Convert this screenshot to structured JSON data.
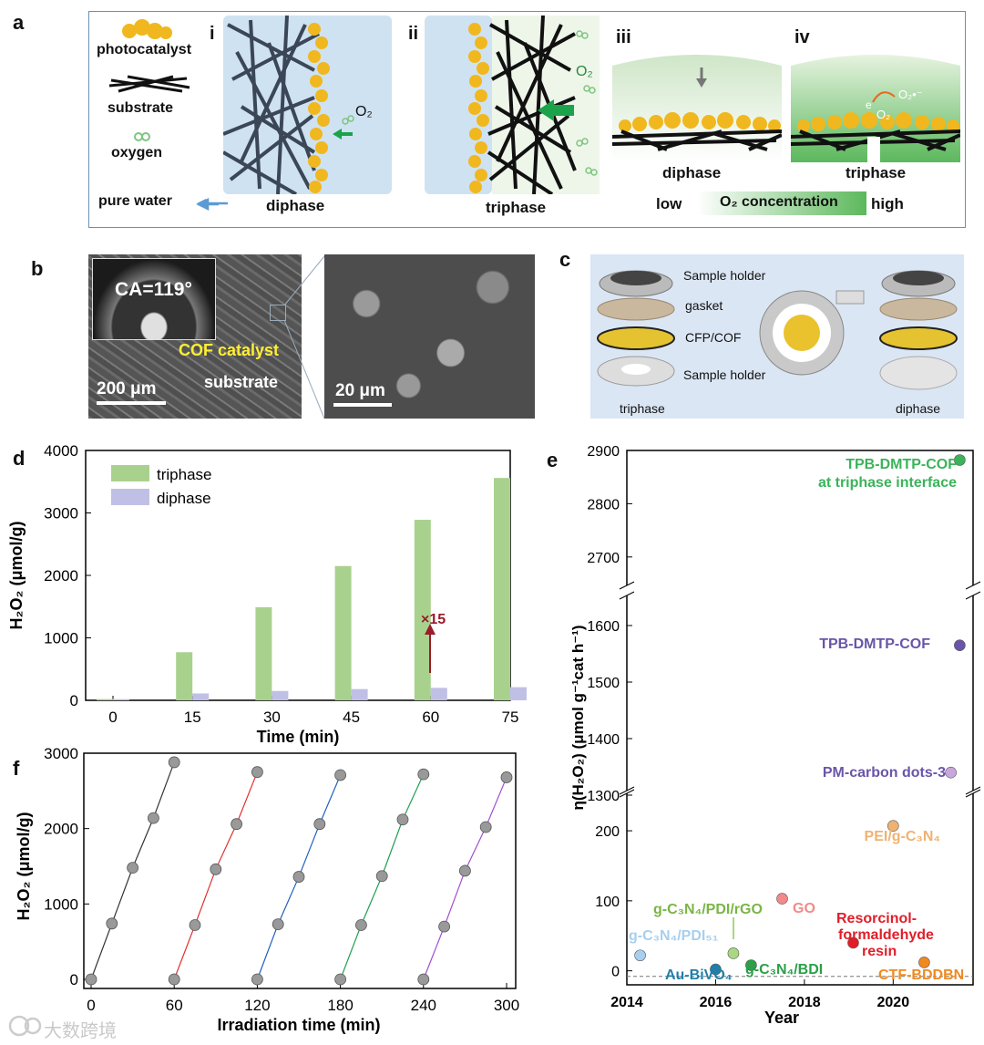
{
  "panel_letters": {
    "a": "a",
    "b": "b",
    "c": "c",
    "d": "d",
    "e": "e",
    "f": "f"
  },
  "panel_a": {
    "legend": {
      "photocatalyst": "photocatalyst",
      "substrate": "substrate",
      "oxygen": "oxygen",
      "pure_water": "pure water"
    },
    "subpanels": {
      "i": "i",
      "ii": "ii",
      "iii": "iii",
      "iv": "iv"
    },
    "labels": {
      "diphase_i": "diphase",
      "triphase_ii": "triphase",
      "diphase_iii": "diphase",
      "triphase_iv": "triphase"
    },
    "o2": "O₂",
    "o2_ii": "O₂",
    "e": "e",
    "o2_radical": "O₂•⁻",
    "o2_small": "O₂",
    "scale": {
      "low": "low",
      "concentration": "O₂ concentration",
      "high": "high"
    },
    "colors": {
      "photocatalyst": "#f0b81e",
      "water": "#cfe2f2",
      "oxygen_gradient": "#5cb85c",
      "arrow_green": "#1aa34a",
      "arrow_blue": "#5b9bd5"
    }
  },
  "panel_b": {
    "ca": "CA=119°",
    "cof": "COF catalyst",
    "substrate": "substrate",
    "scale1": "200 μm",
    "scale2": "20 μm"
  },
  "panel_c": {
    "labels": [
      "Sample holder",
      "gasket",
      "CFP/COF",
      "Sample holder"
    ],
    "triphase": "triphase",
    "diphase": "diphase"
  },
  "chart_data": [
    {
      "panel": "d",
      "type": "bar",
      "categories": [
        "0",
        "15",
        "30",
        "45",
        "60",
        "75"
      ],
      "series": [
        {
          "name": "triphase",
          "values": [
            20,
            770,
            1490,
            2150,
            2890,
            3560
          ],
          "color": "#a9d18e"
        },
        {
          "name": "diphase",
          "values": [
            20,
            110,
            150,
            180,
            200,
            210
          ],
          "color": "#c0c0e6"
        }
      ],
      "xlabel": "Time (min)",
      "ylabel": "H₂O₂ (μmol/g)",
      "ylim": [
        0,
        4000
      ],
      "yticks": [
        "0",
        "1000",
        "2000",
        "3000",
        "4000"
      ],
      "annotation": "×15"
    },
    {
      "panel": "e",
      "type": "scatter",
      "xlabel": "Year",
      "ylabel": "η(H₂O₂) (μmol g⁻¹cat h⁻¹)",
      "xlim": [
        2014,
        2021.8
      ],
      "xticks": [
        "2014",
        "2016",
        "2018",
        "2020"
      ],
      "segments": [
        {
          "ylim": [
            -20,
            260
          ],
          "yticks": [
            "0",
            "100",
            "200"
          ]
        },
        {
          "ylim": [
            1300,
            1650
          ],
          "yticks": [
            "1300",
            "1400",
            "1500",
            "1600"
          ]
        },
        {
          "ylim": [
            2650,
            2900
          ],
          "yticks": [
            "2700",
            "2800",
            "2900"
          ]
        }
      ],
      "points": [
        {
          "label": "TPB-DMTP-COF at triphase interface",
          "x": 2021.5,
          "y": 2882,
          "color": "#3bb35a"
        },
        {
          "label": "TPB-DMTP-COF",
          "x": 2021.5,
          "y": 1565,
          "color": "#6a55a8"
        },
        {
          "label": "PM-carbon dots-3",
          "x": 2021.3,
          "y": 1340,
          "color": "#c8a8dc"
        },
        {
          "label": "PEI/g-C₃N₄",
          "x": 2020,
          "y": 207,
          "color": "#f0b272"
        },
        {
          "label": "GO",
          "x": 2017.5,
          "y": 103,
          "color": "#f28a8a"
        },
        {
          "label": "Resorcinol-formaldehyde resin",
          "x": 2019.1,
          "y": 40,
          "color": "#e01e28"
        },
        {
          "label": "g-C₃N₄/PDI/rGO",
          "x": 2016.4,
          "y": 25,
          "color": "#a8d880"
        },
        {
          "label": "g-C₃N₄/PDI₅₁",
          "x": 2014.3,
          "y": 22,
          "color": "#a8cfee"
        },
        {
          "label": "Au-BiVO₄",
          "x": 2016,
          "y": 2,
          "color": "#1f7fa8"
        },
        {
          "label": "g-C₃N₄/BDI",
          "x": 2016.8,
          "y": 8,
          "color": "#2aa048"
        },
        {
          "label": "CTF-BDDBN",
          "x": 2020.7,
          "y": 12,
          "color": "#f08a20"
        }
      ],
      "text_labels": {
        "p1a": "TPB-DMTP-COF",
        "p1b": "at triphase interface",
        "p2": "TPB-DMTP-COF",
        "p3": "PM-carbon dots-3",
        "p4": "PEI/g-C₃N₄",
        "p5": "GO",
        "p6a": "Resorcinol-",
        "p6b": "formaldehyde",
        "p6c": "resin",
        "p7": "g-C₃N₄/PDI/rGO",
        "p8": "g-C₃N₄/PDI₅₁",
        "p9": "Au-BiVO₄",
        "p10": "g-C₃N₄/BDI",
        "p11": "CTF-BDDBN"
      }
    },
    {
      "panel": "f",
      "type": "line",
      "xlabel": "Irradiation time (min)",
      "ylabel": "H₂O₂ (μmol/g)",
      "xlim": [
        0,
        300
      ],
      "ylim": [
        0,
        3000
      ],
      "xticks": [
        "0",
        "60",
        "120",
        "180",
        "240",
        "300"
      ],
      "yticks": [
        "0",
        "1000",
        "2000",
        "3000"
      ],
      "series": [
        {
          "color": "#333333",
          "x": [
            0,
            15,
            30,
            45,
            60
          ],
          "y": [
            0,
            740,
            1480,
            2140,
            2880
          ]
        },
        {
          "color": "#e03030",
          "x": [
            60,
            75,
            90,
            105,
            120
          ],
          "y": [
            0,
            720,
            1460,
            2060,
            2750
          ]
        },
        {
          "color": "#2060c0",
          "x": [
            120,
            135,
            150,
            165,
            180
          ],
          "y": [
            0,
            730,
            1360,
            2060,
            2710
          ]
        },
        {
          "color": "#20a050",
          "x": [
            180,
            195,
            210,
            225,
            240
          ],
          "y": [
            0,
            720,
            1370,
            2120,
            2720
          ]
        },
        {
          "color": "#a050d0",
          "x": [
            240,
            255,
            270,
            285,
            300
          ],
          "y": [
            0,
            700,
            1440,
            2020,
            2680
          ]
        }
      ]
    }
  ],
  "watermark": "大数跨境"
}
